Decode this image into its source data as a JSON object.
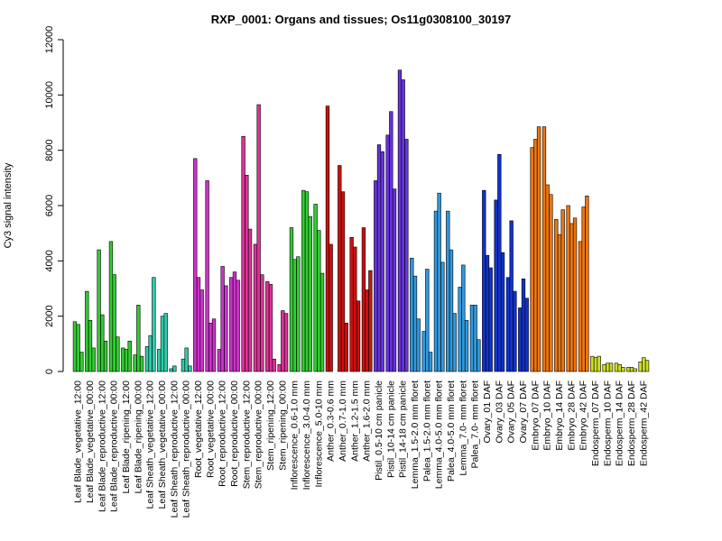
{
  "chart_data": {
    "type": "bar",
    "title": "RXP_0001: Organs and tissues; Os11g0308100_30197",
    "ylabel": "Cy3 signal intensity",
    "xlabel": "",
    "ylim": [
      0,
      12000
    ],
    "yticks": [
      0,
      2000,
      4000,
      6000,
      8000,
      10000,
      12000
    ],
    "grid": false,
    "legend": "none",
    "bar_border_color": "#000000",
    "groups": [
      {
        "label": "Leaf Blade_vegetative_12:00",
        "color": "#33cc33",
        "values": [
          1800,
          1700,
          700
        ]
      },
      {
        "label": "Leaf Blade_vegetative_00:00",
        "color": "#33cc33",
        "values": [
          2900,
          1850,
          850
        ]
      },
      {
        "label": "Leaf Blade_reproductive_12:00",
        "color": "#33cc33",
        "values": [
          4400,
          2050,
          1100
        ]
      },
      {
        "label": "Leaf Blade_reproductive_00:00",
        "color": "#33cc33",
        "values": [
          4700,
          3500,
          1250
        ]
      },
      {
        "label": "Leaf Blade_ripening_12:00",
        "color": "#33cc33",
        "values": [
          850,
          800,
          1100
        ]
      },
      {
        "label": "Leaf Blade_ripening_00:00",
        "color": "#33cc33",
        "values": [
          600,
          2400,
          550
        ]
      },
      {
        "label": "Leaf Sheath_vegetative_12:00",
        "color": "#33ccaa",
        "values": [
          900,
          1300,
          3400
        ]
      },
      {
        "label": "Leaf Sheath_vegetative_00:00",
        "color": "#33ccaa",
        "values": [
          800,
          2000,
          2100
        ]
      },
      {
        "label": "Leaf Sheath_reproductive_12:00",
        "color": "#33ccaa",
        "values": [
          100,
          200,
          0
        ]
      },
      {
        "label": "Leaf Sheath_reproductive_00:00",
        "color": "#33ccaa",
        "values": [
          450,
          850,
          200
        ]
      },
      {
        "label": "Root_vegetative_12:00",
        "color": "#cc33cc",
        "values": [
          7700,
          3400,
          2950
        ]
      },
      {
        "label": "Root_vegetative_00:00",
        "color": "#cc33cc",
        "values": [
          6900,
          1750,
          1900
        ]
      },
      {
        "label": "Root_reproductive_12:00",
        "color": "#cc33cc",
        "values": [
          800,
          3800,
          3100
        ]
      },
      {
        "label": "Root_reproductive_00:00",
        "color": "#cc33cc",
        "values": [
          3400,
          3600,
          3300
        ]
      },
      {
        "label": "Stem_reproductive_12:00",
        "color": "#dd3399",
        "values": [
          8500,
          7100,
          5150
        ]
      },
      {
        "label": "Stem_reproductive_00:00",
        "color": "#dd3399",
        "values": [
          4600,
          9650,
          3500
        ]
      },
      {
        "label": "Stem_ripening_12:00",
        "color": "#dd3399",
        "values": [
          3250,
          3150,
          450
        ]
      },
      {
        "label": "Stem_ripening_00:00",
        "color": "#dd3399",
        "values": [
          250,
          2200,
          2100
        ]
      },
      {
        "label": "Inflorescence_0.6-1.0 mm",
        "color": "#33cc33",
        "values": [
          5200,
          4050,
          4150
        ]
      },
      {
        "label": "Inflorescence_3.0-4.0 mm",
        "color": "#33cc33",
        "values": [
          6550,
          6500,
          5600
        ]
      },
      {
        "label": "Inflorescence_5.0-10 mm",
        "color": "#33cc33",
        "values": [
          6050,
          5100,
          3550
        ]
      },
      {
        "label": "Anther_0.3-0.6 mm",
        "color": "#cc1111",
        "values": [
          9600,
          4600,
          0
        ]
      },
      {
        "label": "Anther_0.7-1.0 mm",
        "color": "#cc1111",
        "values": [
          7450,
          6500,
          1750
        ]
      },
      {
        "label": "Anther_1.2-1.5 mm",
        "color": "#cc1111",
        "values": [
          4850,
          4500,
          2550
        ]
      },
      {
        "label": "Anther_1.6-2.0 mm",
        "color": "#cc1111",
        "values": [
          5200,
          2950,
          3650
        ]
      },
      {
        "label": "Pistil_0.5-10 cm panicle",
        "color": "#6633dd",
        "values": [
          6900,
          8200,
          7950
        ]
      },
      {
        "label": "Pistil_10-14 cm panicle",
        "color": "#6633dd",
        "values": [
          8550,
          9400,
          6600
        ]
      },
      {
        "label": "Pistil_14-18 cm panicle",
        "color": "#6633dd",
        "values": [
          10900,
          10550,
          8400
        ]
      },
      {
        "label": "Lemma_1.5-2.0 mm floret",
        "color": "#3399dd",
        "values": [
          4100,
          3450,
          1900
        ]
      },
      {
        "label": "Palea_1.5-2.0 mm floret",
        "color": "#3399dd",
        "values": [
          1450,
          3700,
          700
        ]
      },
      {
        "label": "Lemma_4.0-5.0 mm floret",
        "color": "#3399dd",
        "values": [
          5800,
          6450,
          3950
        ]
      },
      {
        "label": "Palea_4.0-5.0 mm floret",
        "color": "#3399dd",
        "values": [
          5800,
          4400,
          2100
        ]
      },
      {
        "label": "Lemma_7.0- mm floret",
        "color": "#3399dd",
        "values": [
          3050,
          3850,
          1850
        ]
      },
      {
        "label": "Palea_7.0- mm floret",
        "color": "#3399dd",
        "values": [
          2400,
          2400,
          1150
        ]
      },
      {
        "label": "Ovary_01 DAF",
        "color": "#1133cc",
        "values": [
          6550,
          4200,
          3750
        ]
      },
      {
        "label": "Ovary_03 DAF",
        "color": "#1133cc",
        "values": [
          6200,
          7850,
          4300
        ]
      },
      {
        "label": "Ovary_05 DAF",
        "color": "#1133cc",
        "values": [
          3400,
          5450,
          2900
        ]
      },
      {
        "label": "Ovary_07 DAF",
        "color": "#1133cc",
        "values": [
          2300,
          3350,
          2650
        ]
      },
      {
        "label": "Embryo_07 DAF",
        "color": "#ee7711",
        "values": [
          8100,
          8400,
          8850
        ]
      },
      {
        "label": "Embryo_10 DAF",
        "color": "#ee7711",
        "values": [
          8850,
          6750,
          6400
        ]
      },
      {
        "label": "Embryo_14 DAF",
        "color": "#ee7711",
        "values": [
          5500,
          4950,
          5850
        ]
      },
      {
        "label": "Embryo_28 DAF",
        "color": "#ee7711",
        "values": [
          6000,
          5350,
          5550
        ]
      },
      {
        "label": "Embryo_42 DAF",
        "color": "#ee7711",
        "values": [
          4700,
          5950,
          6350
        ]
      },
      {
        "label": "Endosperm_07 DAF",
        "color": "#ccdd22",
        "values": [
          550,
          500,
          550
        ]
      },
      {
        "label": "Endosperm_10 DAF",
        "color": "#ccdd22",
        "values": [
          250,
          300,
          300
        ]
      },
      {
        "label": "Endosperm_14 DAF",
        "color": "#ccdd22",
        "values": [
          300,
          250,
          150
        ]
      },
      {
        "label": "Endosperm_28 DAF",
        "color": "#ccdd22",
        "values": [
          150,
          150,
          100
        ]
      },
      {
        "label": "Endosperm_42 DAF",
        "color": "#ccdd22",
        "values": [
          350,
          500,
          400
        ]
      }
    ]
  }
}
